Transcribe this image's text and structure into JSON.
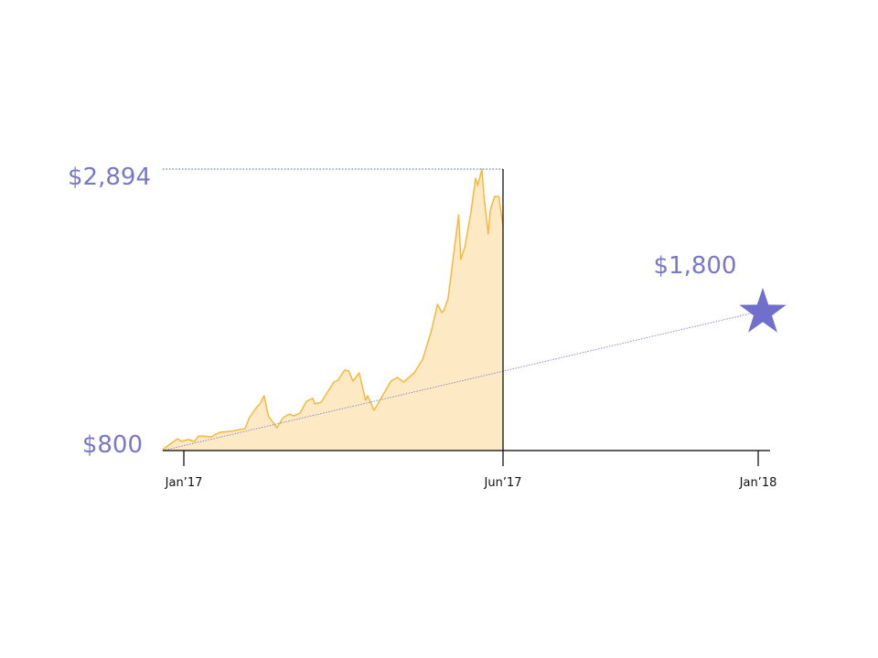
{
  "chart_data": {
    "type": "area",
    "title": "",
    "xlabel": "",
    "ylabel": "",
    "x_ticks": [
      {
        "label": "Jan’17",
        "date": "2017-01-01"
      },
      {
        "label": "Jun’17",
        "date": "2017-06-01"
      },
      {
        "label": "Jan’18",
        "date": "2018-01-01"
      }
    ],
    "ylim": [
      800,
      2894
    ],
    "grid": false,
    "colors": {
      "area_fill": "#fde9c4",
      "area_line": "#f5b83d",
      "accent": "#7878c8",
      "star": "#7070cc",
      "axis": "#000000"
    },
    "series": [
      {
        "values": [
          [
            "2016-12-22",
            807
          ],
          [
            "2016-12-26",
            854
          ],
          [
            "2016-12-29",
            888
          ],
          [
            "2016-12-31",
            868
          ],
          [
            "2017-01-03",
            882
          ],
          [
            "2017-01-06",
            868
          ],
          [
            "2017-01-08",
            909
          ],
          [
            "2017-01-14",
            902
          ],
          [
            "2017-01-18",
            936
          ],
          [
            "2017-01-23",
            943
          ],
          [
            "2017-01-30",
            963
          ],
          [
            "2017-02-01",
            1045
          ],
          [
            "2017-02-04",
            1113
          ],
          [
            "2017-02-06",
            1147
          ],
          [
            "2017-02-08",
            1208
          ],
          [
            "2017-02-10",
            1058
          ],
          [
            "2017-02-14",
            970
          ],
          [
            "2017-02-17",
            1045
          ],
          [
            "2017-02-20",
            1072
          ],
          [
            "2017-02-22",
            1058
          ],
          [
            "2017-02-25",
            1079
          ],
          [
            "2017-02-28",
            1167
          ],
          [
            "2017-03-03",
            1188
          ],
          [
            "2017-03-04",
            1147
          ],
          [
            "2017-03-07",
            1160
          ],
          [
            "2017-03-13",
            1310
          ],
          [
            "2017-03-15",
            1324
          ],
          [
            "2017-03-18",
            1398
          ],
          [
            "2017-03-20",
            1392
          ],
          [
            "2017-03-22",
            1317
          ],
          [
            "2017-03-25",
            1378
          ],
          [
            "2017-03-28",
            1174
          ],
          [
            "2017-03-29",
            1208
          ],
          [
            "2017-04-01",
            1099
          ],
          [
            "2017-04-04",
            1181
          ],
          [
            "2017-04-09",
            1317
          ],
          [
            "2017-04-12",
            1344
          ],
          [
            "2017-04-15",
            1310
          ],
          [
            "2017-04-20",
            1378
          ],
          [
            "2017-04-24",
            1480
          ],
          [
            "2017-04-28",
            1684
          ],
          [
            "2017-05-01",
            1888
          ],
          [
            "2017-05-03",
            1827
          ],
          [
            "2017-05-04",
            1840
          ],
          [
            "2017-05-06",
            1929
          ],
          [
            "2017-05-11",
            2554
          ],
          [
            "2017-05-12",
            2221
          ],
          [
            "2017-05-14",
            2316
          ],
          [
            "2017-05-17",
            2588
          ],
          [
            "2017-05-19",
            2826
          ],
          [
            "2017-05-20",
            2772
          ],
          [
            "2017-05-22",
            2894
          ],
          [
            "2017-05-23",
            2690
          ],
          [
            "2017-05-25",
            2411
          ],
          [
            "2017-05-26",
            2588
          ],
          [
            "2017-05-28",
            2690
          ],
          [
            "2017-05-30",
            2690
          ],
          [
            "2017-06-01",
            2473
          ]
        ]
      }
    ],
    "annotations": {
      "max_label": "$2,894",
      "min_label": "$800",
      "target_label": "$1,800",
      "target": {
        "date": "2018-01-01",
        "value": 1800
      },
      "trend_start": {
        "date": "2016-12-22",
        "value": 800
      },
      "max_value": 2894,
      "min_value": 800
    }
  }
}
